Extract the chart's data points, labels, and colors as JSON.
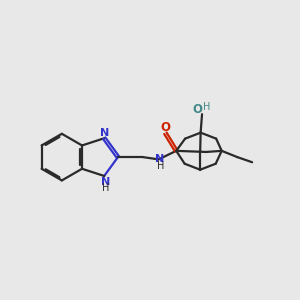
{
  "bg_color": "#e8e8e8",
  "bond_color": "#2a2a2a",
  "N_color": "#3333cc",
  "O_color": "#cc2200",
  "OH_color": "#448888",
  "lw": 1.6,
  "fig_w": 3.0,
  "fig_h": 3.0,
  "dpi": 100,
  "xlim": [
    0.0,
    10.5
  ],
  "ylim": [
    1.5,
    8.5
  ]
}
